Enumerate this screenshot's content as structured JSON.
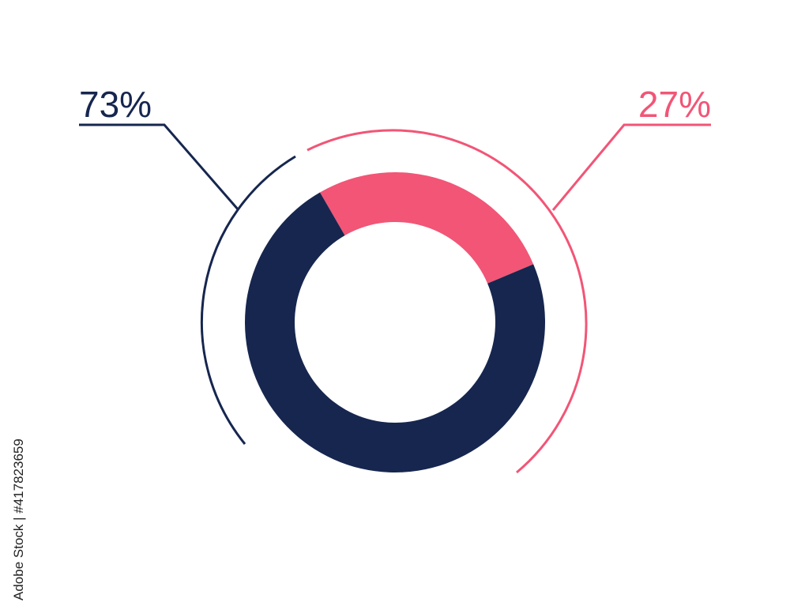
{
  "chart_data": {
    "type": "pie",
    "donut": true,
    "categories": [
      null,
      null
    ],
    "values": [
      27,
      73
    ],
    "value_labels": [
      "27%",
      "73%"
    ],
    "colors": [
      "#f25576",
      "#16264f"
    ]
  },
  "side_text": "Adobe Stock | #417823659"
}
